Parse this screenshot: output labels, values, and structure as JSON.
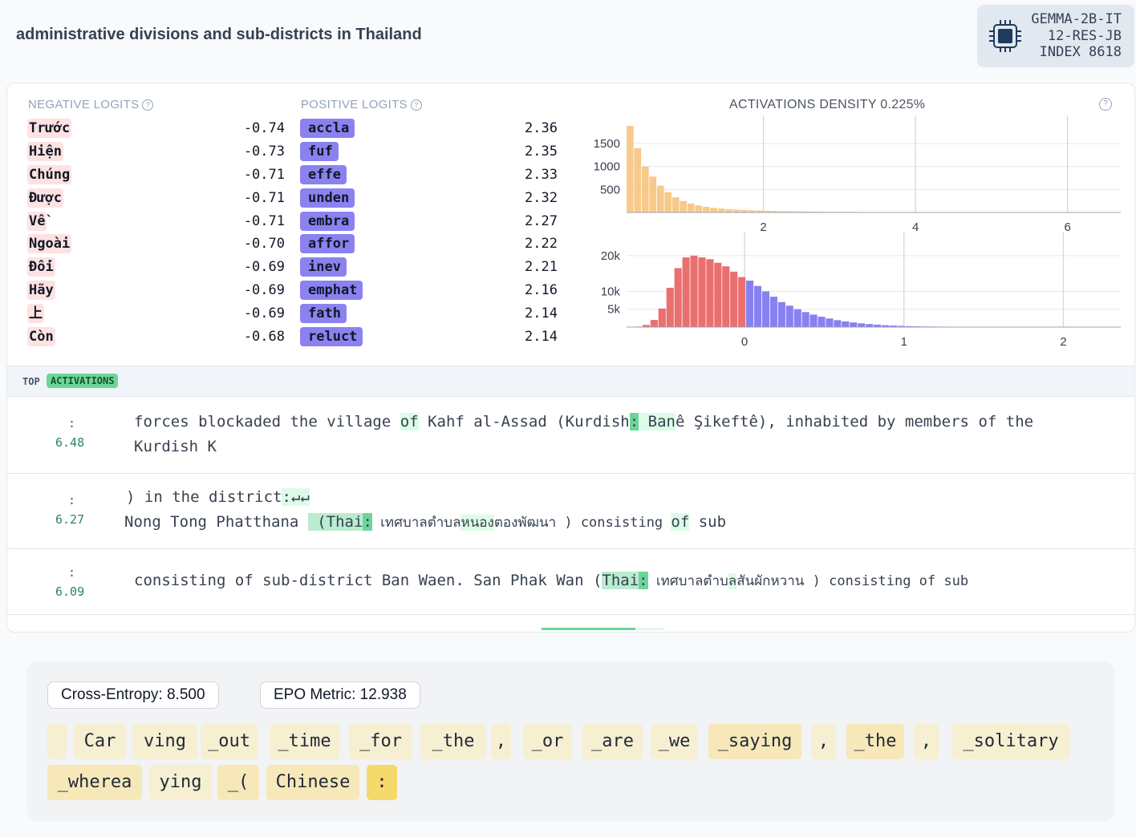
{
  "header": {
    "title": "administrative divisions and sub-districts in Thailand",
    "badge_line1": "GEMMA-2B-IT",
    "badge_line2": "12-RES-JB",
    "badge_line3": "INDEX 8618"
  },
  "logits": {
    "negative_label": "NEGATIVE LOGITS",
    "positive_label": "POSITIVE LOGITS",
    "help_glyph": "?",
    "negative": [
      {
        "token": "Trước",
        "value": "-0.74"
      },
      {
        "token": "Hiện",
        "value": "-0.73"
      },
      {
        "token": "Chúng",
        "value": "-0.71"
      },
      {
        "token": "Được",
        "value": "-0.71"
      },
      {
        "token": "Về",
        "value": "-0.71"
      },
      {
        "token": "Ngoài",
        "value": "-0.70"
      },
      {
        "token": "Đối",
        "value": "-0.69"
      },
      {
        "token": "Hãy",
        "value": "-0.69"
      },
      {
        "token": "上",
        "value": "-0.69"
      },
      {
        "token": "Còn",
        "value": "-0.68"
      }
    ],
    "positive": [
      {
        "token": "accla",
        "value": "2.36"
      },
      {
        "token": "fuf",
        "value": "2.35"
      },
      {
        "token": "effe",
        "value": "2.33"
      },
      {
        "token": "unden",
        "value": "2.32"
      },
      {
        "token": "embra",
        "value": "2.27"
      },
      {
        "token": "affor",
        "value": "2.22"
      },
      {
        "token": "inev",
        "value": "2.21"
      },
      {
        "token": "emphat",
        "value": "2.16"
      },
      {
        "token": "fath",
        "value": "2.14"
      },
      {
        "token": "reluct",
        "value": "2.14"
      }
    ]
  },
  "density": {
    "title": "ACTIVATIONS DENSITY 0.225%",
    "help_glyph": "?"
  },
  "chart_data": [
    {
      "type": "bar",
      "title": "ACTIVATIONS DENSITY 0.225%",
      "color": "#f7c98a",
      "x_ticks": [
        "2",
        "4",
        "6"
      ],
      "y_ticks": [
        "500",
        "1000",
        "1500"
      ],
      "xlim": [
        0.2,
        6.7
      ],
      "ylim": [
        0,
        1900
      ],
      "bin_start": 0.2,
      "bin_width": 0.1,
      "values": [
        1880,
        1400,
        1000,
        780,
        580,
        440,
        330,
        250,
        195,
        150,
        120,
        100,
        85,
        72,
        62,
        55,
        48,
        42,
        37,
        33,
        29,
        26,
        23,
        21,
        19,
        17,
        15,
        13,
        12,
        11,
        10,
        9,
        8,
        8,
        7,
        7,
        6,
        6,
        6,
        5,
        5,
        5,
        5,
        4,
        4,
        4,
        4,
        4,
        4,
        4,
        4,
        4,
        4,
        4,
        4,
        4,
        4,
        4,
        4,
        4,
        4,
        4,
        4,
        4,
        4
      ]
    },
    {
      "type": "bar",
      "title": "",
      "colors": {
        "negative": "#ea6f6f",
        "positive": "#8780f0"
      },
      "x_ticks": [
        "0",
        "1",
        "2"
      ],
      "y_ticks": [
        "5k",
        "10k",
        "20k"
      ],
      "xlim": [
        -0.74,
        2.36
      ],
      "ylim": [
        0,
        24000
      ],
      "bin_start": -0.74,
      "bin_width": 0.05,
      "values": [
        60,
        150,
        600,
        2000,
        5200,
        11000,
        16500,
        19500,
        20000,
        19500,
        19000,
        18000,
        17000,
        15500,
        14000,
        13000,
        11500,
        10000,
        8500,
        7000,
        6000,
        5000,
        4200,
        3500,
        2900,
        2400,
        1950,
        1600,
        1300,
        1050,
        850,
        680,
        540,
        430,
        340,
        270,
        220,
        180,
        150,
        130,
        110,
        95,
        85,
        75,
        70,
        65,
        60,
        55,
        50,
        48,
        45,
        42,
        40,
        38,
        36,
        35,
        34,
        33,
        32,
        31,
        30,
        30
      ]
    }
  ],
  "top_activations": {
    "label_top": "TOP",
    "label_activations": "ACTIVATIONS",
    "colon": ":",
    "rows": [
      {
        "score": "6.48",
        "segments": [
          "forces blockaded the village ",
          "of",
          " Kahf al-Assad (Kurdish",
          ":",
          " Ban",
          "ê Şikeftê), inhabited by members of the"
        ],
        "line2": "Kurdish K"
      },
      {
        "score": "6.27",
        "line1a": ") in the district",
        "line1b": ":↵↵",
        "segments": [
          "",
          "Nong Tong Phatthana",
          " (Thai",
          ":",
          " เทศบาลตำบล",
          "หนอง",
          "ตองพัฒนา ) consisting ",
          "of",
          " sub"
        ]
      },
      {
        "score": "6.09",
        "segments": [
          "consisting of sub-district Ban Waen. San Phak Wan (",
          "Thai",
          ":",
          " เทศบาลตำบ",
          "ล",
          "สันผักหวาน ) consisting of sub"
        ]
      }
    ]
  },
  "metrics": {
    "cross_entropy": "Cross-Entropy: 8.500",
    "epo": "EPO Metric: 12.938"
  },
  "tokens": [
    "",
    "Car",
    "ving",
    "_out",
    "_time",
    "_for",
    "_the",
    ",",
    "_or",
    "_are",
    "_we",
    "_saying",
    ",",
    "_the",
    ",",
    "_solitary",
    "_wherea",
    "ying",
    "_(",
    "Chinese",
    ":"
  ]
}
